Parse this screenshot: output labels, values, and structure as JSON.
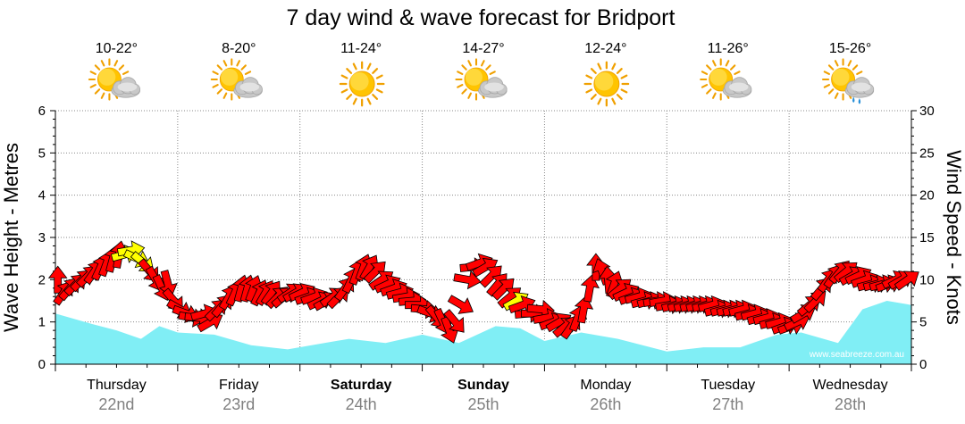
{
  "title": "7 day wind & wave forecast for Bridport",
  "watermark": "www.seabreeze.com.au",
  "colors": {
    "wave_fill": "#80eef5",
    "arrow_normal": "#ff0000",
    "arrow_light": "#ffff00",
    "arrow_stroke": "#000000",
    "grid": "#888888"
  },
  "days": [
    {
      "name": "Thursday",
      "date": "22nd",
      "bold": false,
      "temp": "10-22°",
      "icon": "partly-cloudy-icon"
    },
    {
      "name": "Friday",
      "date": "23rd",
      "bold": false,
      "temp": "8-20°",
      "icon": "partly-cloudy-icon"
    },
    {
      "name": "Saturday",
      "date": "24th",
      "bold": true,
      "temp": "11-24°",
      "icon": "sunny-icon"
    },
    {
      "name": "Sunday",
      "date": "25th",
      "bold": true,
      "temp": "14-27°",
      "icon": "partly-cloudy-icon"
    },
    {
      "name": "Monday",
      "date": "26th",
      "bold": false,
      "temp": "12-24°",
      "icon": "sunny-icon"
    },
    {
      "name": "Tuesday",
      "date": "27th",
      "bold": false,
      "temp": "11-26°",
      "icon": "partly-cloudy-icon"
    },
    {
      "name": "Wednesday",
      "date": "28th",
      "bold": false,
      "temp": "15-26°",
      "icon": "rain-showers-icon"
    }
  ],
  "chart_data": {
    "type": "area",
    "ylabel_left": "Wave Height - Metres",
    "ylabel_right": "Wind Speed - Knots",
    "ylim_left": [
      0,
      6
    ],
    "ylim_right": [
      0,
      30
    ],
    "yticks_left": [
      "0",
      "1",
      "2",
      "3",
      "4",
      "5",
      "6"
    ],
    "yticks_right": [
      "0",
      "5",
      "10",
      "15",
      "20",
      "25",
      "30"
    ],
    "grid": true,
    "x_unit": "days from start of Thursday 22nd",
    "x_range": [
      0,
      7
    ],
    "wave_height_m": {
      "x": [
        0,
        0.3,
        0.5,
        0.7,
        0.85,
        1.0,
        1.3,
        1.6,
        1.9,
        2.2,
        2.4,
        2.7,
        3.0,
        3.3,
        3.6,
        3.8,
        4.0,
        4.3,
        4.6,
        5.0,
        5.3,
        5.6,
        5.9,
        6.1,
        6.4,
        6.6,
        6.8,
        7.0
      ],
      "values": [
        1.2,
        0.95,
        0.8,
        0.6,
        0.9,
        0.75,
        0.7,
        0.45,
        0.35,
        0.5,
        0.6,
        0.5,
        0.7,
        0.5,
        0.9,
        0.85,
        0.55,
        0.75,
        0.6,
        0.3,
        0.4,
        0.4,
        0.7,
        0.75,
        0.5,
        1.3,
        1.5,
        1.4
      ]
    },
    "wind": {
      "x": [
        0.02,
        0.07,
        0.12,
        0.17,
        0.22,
        0.27,
        0.32,
        0.37,
        0.42,
        0.47,
        0.52,
        0.57,
        0.62,
        0.67,
        0.72,
        0.77,
        0.82,
        0.87,
        0.92,
        0.97,
        1.02,
        1.07,
        1.12,
        1.17,
        1.22,
        1.27,
        1.32,
        1.37,
        1.42,
        1.47,
        1.52,
        1.57,
        1.62,
        1.67,
        1.72,
        1.77,
        1.82,
        1.87,
        1.92,
        1.97,
        2.02,
        2.07,
        2.12,
        2.17,
        2.22,
        2.27,
        2.32,
        2.37,
        2.42,
        2.47,
        2.52,
        2.57,
        2.62,
        2.67,
        2.72,
        2.77,
        2.82,
        2.87,
        2.92,
        2.97,
        3.02,
        3.07,
        3.12,
        3.17,
        3.22,
        3.27,
        3.32,
        3.37,
        3.42,
        3.47,
        3.52,
        3.57,
        3.62,
        3.67,
        3.72,
        3.77,
        3.82,
        3.87,
        3.92,
        3.97,
        4.02,
        4.07,
        4.12,
        4.17,
        4.22,
        4.27,
        4.32,
        4.37,
        4.42,
        4.47,
        4.52,
        4.57,
        4.62,
        4.67,
        4.72,
        4.77,
        4.82,
        4.87,
        4.92,
        4.97,
        5.02,
        5.07,
        5.12,
        5.17,
        5.22,
        5.27,
        5.32,
        5.37,
        5.42,
        5.47,
        5.52,
        5.57,
        5.62,
        5.67,
        5.72,
        5.77,
        5.82,
        5.87,
        5.92,
        5.97,
        6.02,
        6.07,
        6.12,
        6.17,
        6.22,
        6.27,
        6.32,
        6.37,
        6.42,
        6.47,
        6.52,
        6.57,
        6.62,
        6.67,
        6.72,
        6.77,
        6.82,
        6.87,
        6.92,
        6.97
      ],
      "speed_kn": [
        10,
        8.5,
        9,
        9.5,
        10,
        10.5,
        11,
        11.5,
        12,
        12.5,
        13,
        13,
        13.5,
        12.5,
        12,
        11,
        10,
        9,
        9.5,
        7.5,
        6.5,
        6,
        5.5,
        5.5,
        6,
        5,
        6.5,
        7,
        8,
        8.5,
        9,
        9,
        9,
        8.5,
        8.5,
        8.5,
        8,
        8,
        8.5,
        8.5,
        8.5,
        8,
        8,
        7.5,
        7.5,
        8,
        8,
        9,
        10,
        11,
        11.5,
        11.5,
        11,
        10,
        9.5,
        9,
        8.5,
        8,
        7.5,
        7,
        6.5,
        6,
        5.5,
        5,
        4,
        5,
        7,
        10,
        11.5,
        12,
        11.5,
        10.5,
        9.5,
        9,
        8,
        7.5,
        7,
        6,
        6,
        6.5,
        5.5,
        5,
        5,
        4.5,
        4.5,
        5.5,
        6.5,
        9,
        11.5,
        11,
        10,
        9.5,
        9,
        8.5,
        8,
        8,
        7.5,
        7.5,
        7.5,
        7.5,
        7,
        7,
        7,
        7,
        7,
        7,
        7,
        7,
        6.5,
        6.5,
        6.5,
        6.5,
        6.5,
        6,
        6,
        5.5,
        5.5,
        5,
        5,
        4.5,
        4.5,
        5,
        6,
        7,
        7.5,
        9,
        10,
        10.5,
        11,
        11,
        10.5,
        10.5,
        10,
        9.5,
        9.5,
        9.5,
        9.5,
        10,
        10,
        10
      ],
      "direction_deg": [
        180,
        215,
        220,
        225,
        225,
        225,
        215,
        205,
        200,
        195,
        190,
        255,
        260,
        295,
        310,
        320,
        330,
        335,
        345,
        320,
        300,
        290,
        280,
        275,
        255,
        240,
        225,
        220,
        210,
        205,
        195,
        195,
        200,
        205,
        210,
        215,
        225,
        230,
        235,
        240,
        245,
        250,
        250,
        245,
        240,
        235,
        225,
        215,
        205,
        200,
        200,
        210,
        225,
        235,
        245,
        250,
        255,
        260,
        265,
        270,
        275,
        290,
        320,
        335,
        340,
        320,
        300,
        280,
        265,
        250,
        240,
        225,
        220,
        225,
        230,
        240,
        250,
        265,
        270,
        275,
        260,
        250,
        240,
        230,
        215,
        200,
        190,
        190,
        180,
        160,
        175,
        200,
        230,
        245,
        250,
        255,
        255,
        255,
        260,
        260,
        260,
        255,
        255,
        255,
        255,
        255,
        255,
        255,
        255,
        255,
        255,
        255,
        255,
        255,
        255,
        255,
        255,
        255,
        255,
        250,
        250,
        245,
        240,
        230,
        225,
        220,
        215,
        215,
        220,
        230,
        240,
        245,
        250,
        255,
        255,
        255,
        250,
        245,
        240,
        235
      ],
      "light_threshold_kn": 10.2,
      "light_windows": [
        [
          0.55,
          0.72
        ],
        [
          3.77,
          3.8
        ]
      ]
    }
  }
}
